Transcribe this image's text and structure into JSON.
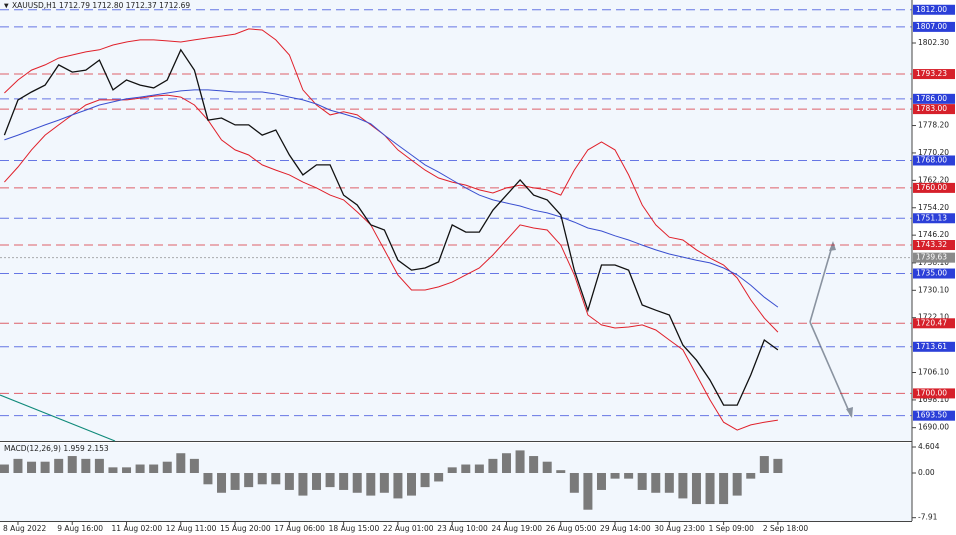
{
  "chart_data": [
    {
      "type": "line",
      "title": "XAUUSD,H1 1712.79 1712.80 1712.37 1712.69",
      "categories": [
        null,
        "8 Aug 2022",
        null,
        null,
        null,
        "9 Aug 16:00",
        null,
        null,
        null,
        "11 Aug 02:00",
        null,
        null,
        null,
        "12 Aug 11:00",
        null,
        null,
        null,
        "15 Aug 20:00",
        null,
        null,
        null,
        "17 Aug 06:00",
        null,
        null,
        null,
        "18 Aug 15:00",
        null,
        null,
        null,
        "22 Aug 01:00",
        null,
        null,
        null,
        "23 Aug 10:00",
        null,
        null,
        null,
        "24 Aug 19:00",
        null,
        null,
        null,
        "26 Aug 05:00",
        null,
        null,
        null,
        "29 Aug 14:00",
        null,
        null,
        null,
        "30 Aug 23:00",
        null,
        null,
        null,
        "1 Sep 09:00",
        null,
        null,
        null,
        "2 Sep 18:00"
      ],
      "series": [
        {
          "color": "#e0202a",
          "values": [
            1787.7,
            1791.5,
            1794.4,
            1795.9,
            1797.9,
            1798.8,
            1799.7,
            1800.3,
            1801.7,
            1802.6,
            1803.2,
            1803.2,
            1802.9,
            1802.6,
            1803.2,
            1803.8,
            1804.3,
            1804.9,
            1806.4,
            1806.1,
            1803.2,
            1798.8,
            1788.6,
            1784.2,
            1781.3,
            1782.2,
            1781.3,
            1778.4,
            1775.4,
            1771.1,
            1768.1,
            1765.2,
            1762.9,
            1761.7,
            1760.8,
            1759.4,
            1758.5,
            1760.0,
            1760.8,
            1760.0,
            1759.4,
            1757.9,
            1765.2,
            1771.1,
            1773.4,
            1771.1,
            1763.8,
            1755.0,
            1749.2,
            1745.6,
            1744.8,
            1741.9,
            1739.5,
            1737.5,
            1733.7,
            1727.3,
            1722.0,
            1717.9
          ]
        },
        {
          "color": "#e0202a",
          "values": [
            1761.7,
            1766.1,
            1771.1,
            1775.4,
            1778.4,
            1781.3,
            1784.2,
            1785.7,
            1785.7,
            1785.7,
            1786.2,
            1786.8,
            1787.1,
            1786.5,
            1784.2,
            1779.8,
            1774.0,
            1771.1,
            1769.6,
            1766.7,
            1765.2,
            1763.8,
            1761.7,
            1760.0,
            1757.9,
            1756.5,
            1753.0,
            1749.2,
            1741.9,
            1734.6,
            1730.2,
            1730.2,
            1731.1,
            1732.5,
            1734.6,
            1736.6,
            1740.4,
            1744.8,
            1749.2,
            1748.3,
            1747.7,
            1743.3,
            1734.6,
            1722.9,
            1720.0,
            1719.1,
            1719.4,
            1720.0,
            1718.5,
            1715.6,
            1712.7,
            1705.4,
            1698.1,
            1691.6,
            1689.3,
            1690.8,
            1691.6,
            1692.2
          ]
        },
        {
          "color": "#3a4fd0",
          "values": [
            1774.0,
            1775.4,
            1776.9,
            1778.4,
            1779.8,
            1781.3,
            1782.7,
            1784.2,
            1785.1,
            1786.0,
            1786.5,
            1787.1,
            1787.7,
            1788.3,
            1788.6,
            1788.6,
            1788.3,
            1788.0,
            1788.0,
            1788.0,
            1787.4,
            1786.5,
            1785.7,
            1784.5,
            1782.7,
            1781.6,
            1780.4,
            1778.7,
            1775.4,
            1772.5,
            1769.6,
            1766.7,
            1764.6,
            1762.3,
            1760.0,
            1757.9,
            1756.5,
            1755.6,
            1754.7,
            1753.5,
            1752.7,
            1751.5,
            1750.0,
            1748.3,
            1747.4,
            1746.0,
            1744.8,
            1743.3,
            1741.9,
            1740.7,
            1739.8,
            1738.9,
            1738.1,
            1736.6,
            1734.6,
            1731.6,
            1728.1,
            1725.2
          ]
        },
        {
          "color": "#111111",
          "values": [
            1775.4,
            1785.7,
            1788.0,
            1790.0,
            1795.9,
            1793.8,
            1794.4,
            1797.3,
            1788.6,
            1791.5,
            1790.0,
            1789.2,
            1791.5,
            1800.3,
            1794.4,
            1779.8,
            1780.4,
            1778.4,
            1778.4,
            1775.4,
            1776.9,
            1769.6,
            1763.8,
            1766.7,
            1766.7,
            1757.9,
            1755.0,
            1749.2,
            1747.7,
            1738.9,
            1736.0,
            1736.6,
            1738.4,
            1749.2,
            1747.1,
            1747.1,
            1753.5,
            1757.9,
            1762.3,
            1757.9,
            1756.5,
            1752.1,
            1736.0,
            1724.3,
            1737.5,
            1737.5,
            1736.0,
            1725.8,
            1724.3,
            1722.9,
            1714.1,
            1709.7,
            1703.9,
            1696.6,
            1696.6,
            1705.4,
            1715.6,
            1712.7
          ]
        }
      ],
      "ylim": [
        1686.4,
        1814.85
      ],
      "yticks": [
        {
          "value": 1802.3,
          "label": "1802.30"
        },
        {
          "value": 1778.2,
          "label": "1778.20"
        },
        {
          "value": 1770.2,
          "label": "1770.20"
        },
        {
          "value": 1762.2,
          "label": "1762.20"
        },
        {
          "value": 1754.2,
          "label": "1754.20"
        },
        {
          "value": 1746.2,
          "label": "1746.20"
        },
        {
          "value": 1738.1,
          "label": "1738.10"
        },
        {
          "value": 1730.1,
          "label": "1730.10"
        },
        {
          "value": 1722.1,
          "label": "1722.10"
        },
        {
          "value": 1706.1,
          "label": "1706.10"
        },
        {
          "value": 1698.1,
          "label": "1698.10"
        },
        {
          "value": 1690,
          "label": "1690.00"
        }
      ],
      "levels": [
        {
          "value": 1812,
          "label": "1812.00",
          "color": "#2b3fd8"
        },
        {
          "value": 1807,
          "label": "1807.00",
          "color": "#2b3fd8"
        },
        {
          "value": 1793.23,
          "label": "1793.23",
          "color": "#d6202a"
        },
        {
          "value": 1786,
          "label": "1786.00",
          "color": "#2b3fd8"
        },
        {
          "value": 1783,
          "label": "1783.00",
          "color": "#d6202a"
        },
        {
          "value": 1768,
          "label": "1768.00",
          "color": "#2b3fd8"
        },
        {
          "value": 1760,
          "label": "1760.00",
          "color": "#d6202a"
        },
        {
          "value": 1751.13,
          "label": "1751.13",
          "color": "#2b3fd8"
        },
        {
          "value": 1743.32,
          "label": "1743.32",
          "color": "#d6202a"
        },
        {
          "value": 1739.63,
          "label": "1739.63",
          "color": "#8a8a8a"
        },
        {
          "value": 1735,
          "label": "1735.00",
          "color": "#2b3fd8"
        },
        {
          "value": 1720.47,
          "label": "1720.47",
          "color": "#d6202a"
        },
        {
          "value": 1713.61,
          "label": "1713.61",
          "color": "#2b3fd8"
        },
        {
          "value": 1700,
          "label": "1700.00",
          "color": "#d6202a"
        },
        {
          "value": 1693.5,
          "label": "1693.50",
          "color": "#2b3fd8"
        }
      ]
    },
    {
      "type": "bar",
      "title": "MACD(12,26,9) 1.959 2.153",
      "color": "#7a7a7a",
      "values": [
        1.5,
        2.5,
        2.0,
        2.0,
        2.5,
        3.0,
        2.5,
        2.5,
        1.0,
        1.0,
        1.5,
        1.5,
        2.0,
        3.5,
        2.5,
        -2.0,
        -3.5,
        -3.0,
        -2.5,
        -2.0,
        -2.0,
        -3.0,
        -4.0,
        -3.0,
        -2.5,
        -3.0,
        -3.5,
        -4.0,
        -3.5,
        -4.5,
        -4.0,
        -2.5,
        -1.5,
        1.0,
        1.5,
        1.5,
        2.5,
        3.5,
        4.0,
        3.0,
        2.0,
        0.5,
        -3.5,
        -6.5,
        -3.0,
        -1.0,
        -1.0,
        -3.0,
        -3.5,
        -3.5,
        -4.5,
        -5.5,
        -5.5,
        -5.5,
        -4.0,
        -1.0,
        3.0,
        2.5
      ],
      "ylim": [
        -8.32,
        5.31
      ],
      "yticks": [
        4.604,
        {
          "value": 0,
          "label": "0.00"
        },
        -7.91
      ]
    }
  ]
}
